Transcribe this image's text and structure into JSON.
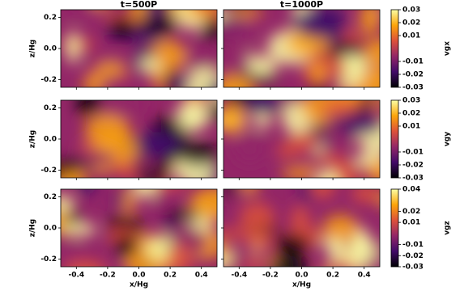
{
  "chart_data": {
    "type": "heatmap",
    "column_titles": [
      "t=500P",
      "t=1000P"
    ],
    "xlabel": "x/Hg",
    "ylabel": "z/Hg",
    "xlim": [
      -0.5,
      0.5
    ],
    "xticks": [
      -0.4,
      -0.2,
      {
        "value": 0,
        "label": "0.0"
      },
      0.2,
      0.4
    ],
    "ylim": [
      -0.25,
      0.25
    ],
    "yticks": [
      -0.2,
      {
        "value": 0,
        "label": "0.0"
      },
      0.2
    ],
    "colormap": [
      "#000004",
      "#420a68",
      "#932667",
      "#dd513a",
      "#fca50a",
      "#fcffa4"
    ],
    "rows": [
      {
        "colorbar_label": "vgx",
        "clim": [
          -0.03,
          0.03
        ],
        "cticks": [
          0.03,
          0.02,
          0.01,
          -0.01,
          -0.02,
          -0.03
        ]
      },
      {
        "colorbar_label": "vgy",
        "clim": [
          -0.03,
          0.03
        ],
        "cticks": [
          0.03,
          0.02,
          0.01,
          -0.01,
          -0.02,
          -0.03
        ]
      },
      {
        "colorbar_label": "vgz",
        "clim": [
          -0.03,
          0.04
        ],
        "cticks": [
          0.04,
          0.02,
          0.01,
          -0.01,
          -0.02,
          -0.03
        ]
      }
    ]
  }
}
